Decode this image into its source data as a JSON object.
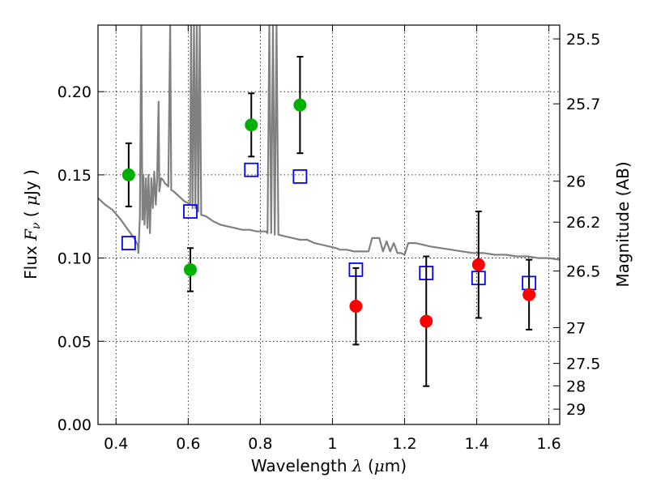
{
  "chart_data": {
    "type": "scatter",
    "xlabel": {
      "prefix": "Wavelength ",
      "symbol": "λ",
      "unit_open": " (",
      "unit_mu": "μ",
      "unit_rest": "m)"
    },
    "ylabel": {
      "prefix": "Flux ",
      "symbol": "F",
      "sub": "ν",
      "unit_open": " ( ",
      "unit_mu": "μ",
      "unit_rest": "Jy )"
    },
    "ylabel_right": "Magnitude (AB)",
    "xlim": [
      0.35,
      1.63
    ],
    "ylim": [
      0.0,
      0.24
    ],
    "x_ticks": [
      0.4,
      0.6,
      0.8,
      1.0,
      1.2,
      1.4,
      1.6
    ],
    "x_tick_labels": [
      "0.4",
      "0.6",
      "0.8",
      "1",
      "1.2",
      "1.4",
      "1.6"
    ],
    "y_ticks": [
      0.0,
      0.05,
      0.1,
      0.15,
      0.2
    ],
    "y_tick_labels": [
      "0.00",
      "0.05",
      "0.10",
      "0.15",
      "0.20"
    ],
    "right_ticks": [
      {
        "label": "25.5",
        "flux": 0.2317
      },
      {
        "label": "25.7",
        "flux": 0.1927
      },
      {
        "label": "26",
        "flux": 0.1462
      },
      {
        "label": "26.2",
        "flux": 0.1216
      },
      {
        "label": "26.5",
        "flux": 0.0922
      },
      {
        "label": "27",
        "flux": 0.0582
      },
      {
        "label": "27.5",
        "flux": 0.0367
      },
      {
        "label": "28",
        "flux": 0.0232
      },
      {
        "label": "29",
        "flux": 0.0092
      }
    ],
    "grid": true,
    "colors": {
      "model": "#808080",
      "green": "#00b000",
      "red": "#ff0000",
      "blue": "#0000ff",
      "errorbar": "#000000"
    },
    "series": [
      {
        "marker": "circle",
        "color": "#00b000",
        "points": [
          {
            "x": 0.435,
            "y": 0.15,
            "err": 0.019
          },
          {
            "x": 0.606,
            "y": 0.093,
            "err": 0.013
          },
          {
            "x": 0.775,
            "y": 0.18,
            "err": 0.019
          },
          {
            "x": 0.91,
            "y": 0.192,
            "err": 0.029
          }
        ]
      },
      {
        "marker": "circle",
        "color": "#ff0000",
        "points": [
          {
            "x": 1.065,
            "y": 0.071,
            "err": 0.023
          },
          {
            "x": 1.26,
            "y": 0.062,
            "err": 0.039
          },
          {
            "x": 1.405,
            "y": 0.096,
            "err": 0.032
          },
          {
            "x": 1.545,
            "y": 0.078,
            "err": 0.021
          }
        ]
      },
      {
        "marker": "open-square",
        "color": "#0000ff",
        "points": [
          {
            "x": 0.435,
            "y": 0.109
          },
          {
            "x": 0.606,
            "y": 0.128
          },
          {
            "x": 0.775,
            "y": 0.153
          },
          {
            "x": 0.91,
            "y": 0.149
          },
          {
            "x": 1.065,
            "y": 0.093
          },
          {
            "x": 1.26,
            "y": 0.091
          },
          {
            "x": 1.405,
            "y": 0.088
          },
          {
            "x": 1.545,
            "y": 0.085
          }
        ]
      },
      {
        "marker": "line",
        "color": "#808080",
        "points": [
          [
            0.35,
            0.136
          ],
          [
            0.37,
            0.132
          ],
          [
            0.39,
            0.129
          ],
          [
            0.41,
            0.124
          ],
          [
            0.43,
            0.118
          ],
          [
            0.45,
            0.112
          ],
          [
            0.46,
            0.108
          ],
          [
            0.462,
            0.103
          ],
          [
            0.466,
            0.125
          ],
          [
            0.47,
            0.24
          ],
          [
            0.473,
            0.123
          ],
          [
            0.476,
            0.15
          ],
          [
            0.479,
            0.12
          ],
          [
            0.483,
            0.148
          ],
          [
            0.487,
            0.118
          ],
          [
            0.49,
            0.15
          ],
          [
            0.494,
            0.115
          ],
          [
            0.498,
            0.148
          ],
          [
            0.502,
            0.13
          ],
          [
            0.506,
            0.152
          ],
          [
            0.51,
            0.132
          ],
          [
            0.514,
            0.148
          ],
          [
            0.518,
            0.194
          ],
          [
            0.52,
            0.14
          ],
          [
            0.525,
            0.148
          ],
          [
            0.53,
            0.147
          ],
          [
            0.535,
            0.145
          ],
          [
            0.54,
            0.144
          ],
          [
            0.545,
            0.143
          ],
          [
            0.55,
            0.24
          ],
          [
            0.553,
            0.141
          ],
          [
            0.56,
            0.14
          ],
          [
            0.57,
            0.138
          ],
          [
            0.58,
            0.136
          ],
          [
            0.59,
            0.134
          ],
          [
            0.6,
            0.133
          ],
          [
            0.605,
            0.132
          ],
          [
            0.608,
            0.24
          ],
          [
            0.612,
            0.13
          ],
          [
            0.616,
            0.24
          ],
          [
            0.62,
            0.13
          ],
          [
            0.624,
            0.24
          ],
          [
            0.628,
            0.128
          ],
          [
            0.632,
            0.24
          ],
          [
            0.636,
            0.126
          ],
          [
            0.65,
            0.125
          ],
          [
            0.67,
            0.122
          ],
          [
            0.69,
            0.12
          ],
          [
            0.71,
            0.119
          ],
          [
            0.73,
            0.118
          ],
          [
            0.75,
            0.117
          ],
          [
            0.77,
            0.117
          ],
          [
            0.79,
            0.116
          ],
          [
            0.8,
            0.116
          ],
          [
            0.81,
            0.116
          ],
          [
            0.815,
            0.116
          ],
          [
            0.82,
            0.115
          ],
          [
            0.825,
            0.24
          ],
          [
            0.83,
            0.115
          ],
          [
            0.835,
            0.24
          ],
          [
            0.84,
            0.114
          ],
          [
            0.845,
            0.24
          ],
          [
            0.85,
            0.114
          ],
          [
            0.87,
            0.113
          ],
          [
            0.89,
            0.112
          ],
          [
            0.91,
            0.111
          ],
          [
            0.93,
            0.111
          ],
          [
            0.95,
            0.109
          ],
          [
            0.97,
            0.108
          ],
          [
            0.99,
            0.107
          ],
          [
            1.01,
            0.106
          ],
          [
            1.02,
            0.105
          ],
          [
            1.04,
            0.105
          ],
          [
            1.06,
            0.104
          ],
          [
            1.08,
            0.104
          ],
          [
            1.1,
            0.104
          ],
          [
            1.11,
            0.112
          ],
          [
            1.13,
            0.112
          ],
          [
            1.14,
            0.104
          ],
          [
            1.15,
            0.11
          ],
          [
            1.16,
            0.104
          ],
          [
            1.17,
            0.109
          ],
          [
            1.18,
            0.103
          ],
          [
            1.19,
            0.103
          ],
          [
            1.2,
            0.102
          ],
          [
            1.21,
            0.109
          ],
          [
            1.23,
            0.109
          ],
          [
            1.25,
            0.108
          ],
          [
            1.27,
            0.107
          ],
          [
            1.3,
            0.106
          ],
          [
            1.33,
            0.105
          ],
          [
            1.36,
            0.104
          ],
          [
            1.39,
            0.103
          ],
          [
            1.42,
            0.103
          ],
          [
            1.45,
            0.102
          ],
          [
            1.48,
            0.102
          ],
          [
            1.51,
            0.101
          ],
          [
            1.54,
            0.101
          ],
          [
            1.57,
            0.1
          ],
          [
            1.6,
            0.1
          ],
          [
            1.63,
            0.099
          ]
        ]
      }
    ]
  }
}
